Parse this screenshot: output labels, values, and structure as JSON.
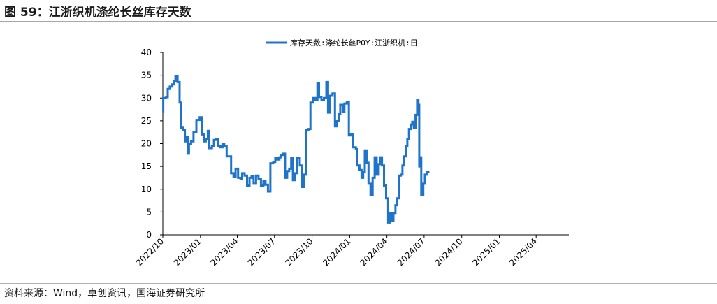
{
  "figure": {
    "title": "图 59：江浙织机涤纶长丝库存天数",
    "source": "资料来源：Wind，卓创资讯，国海证券研究所"
  },
  "colors": {
    "series": "#1f73c8",
    "axis": "#000000",
    "rules": "#a8a8a8"
  },
  "chart_data": {
    "type": "line",
    "title": "",
    "xlabel": "",
    "ylabel": "",
    "ylim": [
      0,
      40
    ],
    "yticks": [
      0,
      5,
      10,
      15,
      20,
      25,
      30,
      35,
      40
    ],
    "xlim": [
      "2022-10-01",
      "2025-06-20"
    ],
    "xticks": [
      "2022/10",
      "2023/01",
      "2023/04",
      "2023/07",
      "2023/10",
      "2024/01",
      "2024/04",
      "2024/07",
      "2024/10",
      "2025/01",
      "2025/04"
    ],
    "grid": false,
    "legend_position": "top-center",
    "series": [
      {
        "name": "库存天数:涤纶长丝POY:江浙织机:日",
        "step": true,
        "points": [
          [
            "2022-10-01",
            27
          ],
          [
            "2022-10-02",
            30
          ],
          [
            "2022-10-09",
            30.2
          ],
          [
            "2022-10-13",
            32
          ],
          [
            "2022-10-18",
            32.5
          ],
          [
            "2022-10-23",
            33
          ],
          [
            "2022-10-28",
            33.8
          ],
          [
            "2022-11-01",
            34.8
          ],
          [
            "2022-11-06",
            33.5
          ],
          [
            "2022-11-11",
            29
          ],
          [
            "2022-11-14",
            23.5
          ],
          [
            "2022-11-19",
            23
          ],
          [
            "2022-11-24",
            20.5
          ],
          [
            "2022-11-27",
            21.5
          ],
          [
            "2022-12-01",
            17.8
          ],
          [
            "2022-12-04",
            20
          ],
          [
            "2022-12-09",
            20.5
          ],
          [
            "2022-12-15",
            22.5
          ],
          [
            "2022-12-22",
            25.2
          ],
          [
            "2022-12-30",
            25.8
          ],
          [
            "2023-01-05",
            22
          ],
          [
            "2023-01-09",
            20.5
          ],
          [
            "2023-01-14",
            21
          ],
          [
            "2023-01-19",
            22.8
          ],
          [
            "2023-01-22",
            19
          ],
          [
            "2023-01-29",
            19.5
          ],
          [
            "2023-02-03",
            20.8
          ],
          [
            "2023-02-08",
            21
          ],
          [
            "2023-02-13",
            19.5
          ],
          [
            "2023-02-19",
            19.2
          ],
          [
            "2023-02-24",
            20
          ],
          [
            "2023-02-28",
            19.5
          ],
          [
            "2023-03-06",
            17.2
          ],
          [
            "2023-03-12",
            17.2
          ],
          [
            "2023-03-17",
            13.5
          ],
          [
            "2023-03-23",
            12.8
          ],
          [
            "2023-03-28",
            14.5
          ],
          [
            "2023-04-03",
            12.5
          ],
          [
            "2023-04-09",
            12.3
          ],
          [
            "2023-04-13",
            13.5
          ],
          [
            "2023-04-19",
            13
          ],
          [
            "2023-04-25",
            10.8
          ],
          [
            "2023-05-01",
            12.5
          ],
          [
            "2023-05-06",
            12.8
          ],
          [
            "2023-05-11",
            11.2
          ],
          [
            "2023-05-17",
            13
          ],
          [
            "2023-05-23",
            12.3
          ],
          [
            "2023-05-29",
            10.8
          ],
          [
            "2023-06-04",
            11.8
          ],
          [
            "2023-06-09",
            11
          ],
          [
            "2023-06-15",
            9.5
          ],
          [
            "2023-06-21",
            15.7
          ],
          [
            "2023-06-28",
            16
          ],
          [
            "2023-07-03",
            16.8
          ],
          [
            "2023-07-08",
            16.5
          ],
          [
            "2023-07-13",
            17
          ],
          [
            "2023-07-17",
            17.5
          ],
          [
            "2023-07-22",
            17.8
          ],
          [
            "2023-07-27",
            12.5
          ],
          [
            "2023-08-01",
            14
          ],
          [
            "2023-08-06",
            14.5
          ],
          [
            "2023-08-11",
            16.8
          ],
          [
            "2023-08-15",
            12
          ],
          [
            "2023-08-20",
            13.5
          ],
          [
            "2023-08-25",
            16.8
          ],
          [
            "2023-09-01",
            15.2
          ],
          [
            "2023-09-07",
            10.5
          ],
          [
            "2023-09-11",
            13.2
          ],
          [
            "2023-09-17",
            23
          ],
          [
            "2023-09-22",
            23.2
          ],
          [
            "2023-09-27",
            29
          ],
          [
            "2023-10-03",
            30
          ],
          [
            "2023-10-09",
            29.5
          ],
          [
            "2023-10-14",
            33.2
          ],
          [
            "2023-10-18",
            30.2
          ],
          [
            "2023-10-24",
            29.5
          ],
          [
            "2023-10-30",
            30
          ],
          [
            "2023-11-05",
            33.5
          ],
          [
            "2023-11-09",
            26.8
          ],
          [
            "2023-11-13",
            30.5
          ],
          [
            "2023-11-20",
            31
          ],
          [
            "2023-11-26",
            23.8
          ],
          [
            "2023-12-01",
            25
          ],
          [
            "2023-12-05",
            26.5
          ],
          [
            "2023-12-09",
            28.5
          ],
          [
            "2023-12-15",
            27
          ],
          [
            "2023-12-19",
            28.8
          ],
          [
            "2023-12-25",
            29.2
          ],
          [
            "2023-12-30",
            21.8
          ],
          [
            "2024-01-04",
            22
          ],
          [
            "2024-01-09",
            19.2
          ],
          [
            "2024-01-16",
            18.8
          ],
          [
            "2024-01-19",
            15.2
          ],
          [
            "2024-01-25",
            14.2
          ],
          [
            "2024-01-30",
            12.5
          ],
          [
            "2024-02-03",
            13.8
          ],
          [
            "2024-02-07",
            18.5
          ],
          [
            "2024-02-12",
            15.8
          ],
          [
            "2024-02-16",
            11.2
          ],
          [
            "2024-02-21",
            8.7
          ],
          [
            "2024-02-26",
            12.5
          ],
          [
            "2024-03-02",
            17
          ],
          [
            "2024-03-07",
            13.2
          ],
          [
            "2024-03-12",
            15.5
          ],
          [
            "2024-03-16",
            17
          ],
          [
            "2024-03-20",
            15.2
          ],
          [
            "2024-03-25",
            10.8
          ],
          [
            "2024-03-30",
            8
          ],
          [
            "2024-04-04",
            2.7
          ],
          [
            "2024-04-08",
            4.7
          ],
          [
            "2024-04-13",
            3
          ],
          [
            "2024-04-17",
            4.8
          ],
          [
            "2024-04-22",
            6.5
          ],
          [
            "2024-04-26",
            8
          ],
          [
            "2024-05-01",
            13
          ],
          [
            "2024-05-05",
            13.2
          ],
          [
            "2024-05-09",
            15.2
          ],
          [
            "2024-05-13",
            17.2
          ],
          [
            "2024-05-17",
            19.5
          ],
          [
            "2024-05-21",
            21
          ],
          [
            "2024-05-25",
            23.2
          ],
          [
            "2024-05-29",
            24.2
          ],
          [
            "2024-06-02",
            24.8
          ],
          [
            "2024-06-06",
            23.5
          ],
          [
            "2024-06-10",
            26.3
          ],
          [
            "2024-06-14",
            29.5
          ],
          [
            "2024-06-17",
            28.5
          ],
          [
            "2024-06-19",
            15
          ],
          [
            "2024-06-21",
            17
          ],
          [
            "2024-06-24",
            8.8
          ],
          [
            "2024-06-29",
            11.2
          ],
          [
            "2024-07-03",
            13.2
          ],
          [
            "2024-07-08",
            13.8
          ],
          [
            "2024-07-14",
            13.8
          ]
        ]
      }
    ]
  }
}
